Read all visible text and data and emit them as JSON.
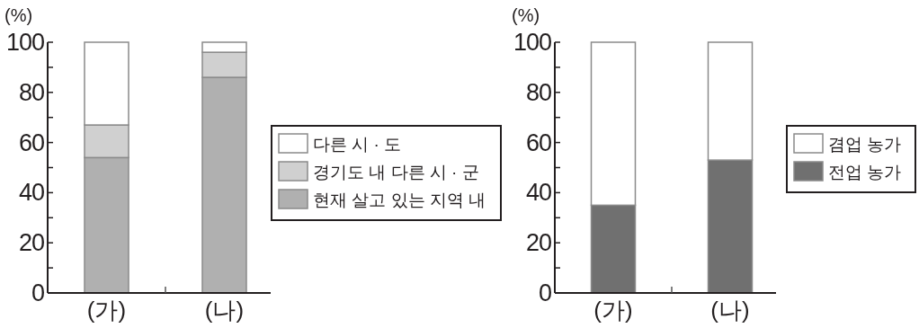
{
  "chart_data": [
    {
      "type": "bar",
      "stacked": true,
      "ylabel": "(%)",
      "categories": [
        "(가)",
        "(나)"
      ],
      "ylim": [
        0,
        100
      ],
      "yticks": [
        0,
        {
          "value": 10,
          "label": null
        },
        20,
        {
          "value": 30,
          "label": null
        },
        40,
        {
          "value": 50,
          "label": null
        },
        60,
        {
          "value": 70,
          "label": null
        },
        80,
        {
          "value": 90,
          "label": null
        },
        100
      ],
      "legend": "right",
      "series": [
        {
          "name": "현재 살고 있는 지역 내",
          "color": "#b0b0b0",
          "values": [
            54,
            86
          ]
        },
        {
          "name": "경기도 내 다른 시 · 군",
          "color": "#d0d0d0",
          "values": [
            13,
            10
          ]
        },
        {
          "name": "다른 시 · 도",
          "color": "#ffffff",
          "values": [
            33,
            4
          ]
        }
      ]
    },
    {
      "type": "bar",
      "stacked": true,
      "ylabel": "(%)",
      "categories": [
        "(가)",
        "(나)"
      ],
      "ylim": [
        0,
        100
      ],
      "yticks": [
        0,
        {
          "value": 10,
          "label": null
        },
        20,
        {
          "value": 30,
          "label": null
        },
        40,
        {
          "value": 50,
          "label": null
        },
        60,
        {
          "value": 70,
          "label": null
        },
        80,
        {
          "value": 90,
          "label": null
        },
        100
      ],
      "legend": "right",
      "series": [
        {
          "name": "전업 농가",
          "color": "#707070",
          "values": [
            35,
            53
          ]
        },
        {
          "name": "겸업 농가",
          "color": "#ffffff",
          "values": [
            65,
            47
          ]
        }
      ]
    }
  ]
}
